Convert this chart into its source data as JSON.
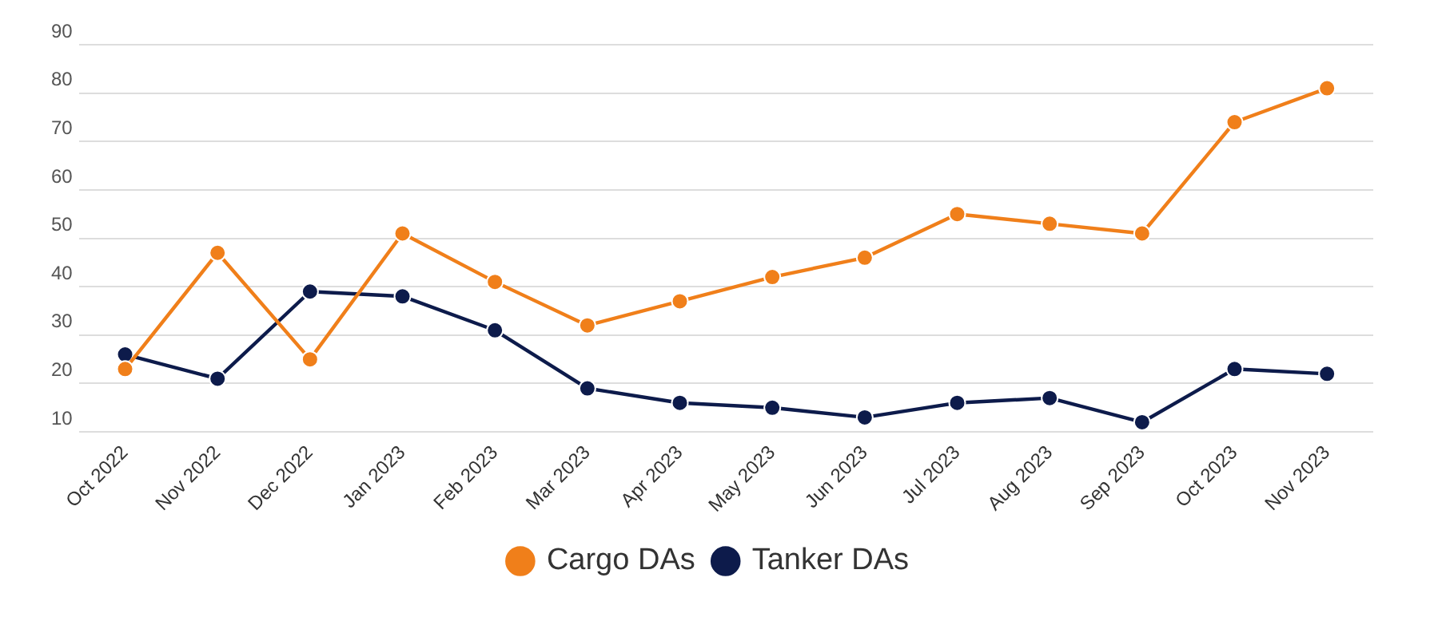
{
  "chart_data": {
    "type": "line",
    "categories": [
      "Oct 2022",
      "Nov 2022",
      "Dec 2022",
      "Jan 2023",
      "Feb 2023",
      "Mar 2023",
      "Apr 2023",
      "May 2023",
      "Jun 2023",
      "Jul 2023",
      "Aug 2023",
      "Sep 2023",
      "Oct 2023",
      "Nov 2023"
    ],
    "series": [
      {
        "name": "Cargo DAs",
        "color": "#f07f1a",
        "values": [
          23,
          47,
          25,
          51,
          41,
          32,
          37,
          42,
          46,
          55,
          53,
          51,
          74,
          81
        ]
      },
      {
        "name": "Tanker DAs",
        "color": "#0d1b4b",
        "values": [
          26,
          21,
          39,
          38,
          31,
          19,
          16,
          15,
          13,
          16,
          17,
          12,
          23,
          22
        ]
      }
    ],
    "ylim": [
      10,
      90
    ],
    "yticks": [
      10,
      20,
      30,
      40,
      50,
      60,
      70,
      80,
      90
    ],
    "grid": "y",
    "legend": "bottom",
    "marker": "circle",
    "line_style": "solid"
  }
}
